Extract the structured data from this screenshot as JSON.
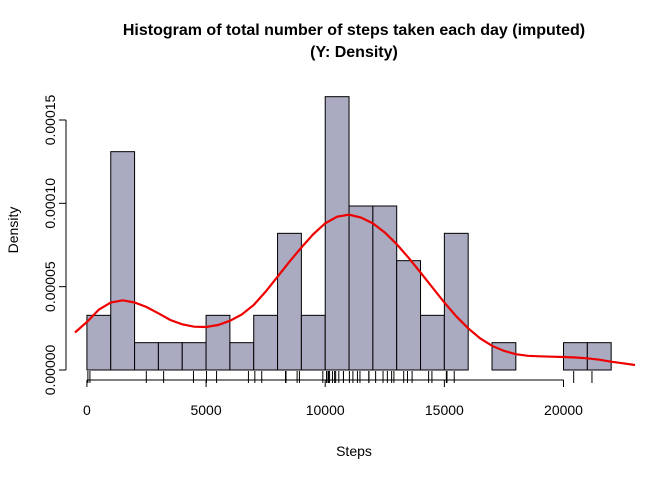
{
  "chart_data": {
    "type": "bar",
    "title": "Histogram of total number of steps taken each day (imputed)",
    "subtitle": "(Y: Density)",
    "xlabel": "Steps",
    "ylabel": "Density",
    "x_ticks": [
      0,
      5000,
      10000,
      15000,
      20000
    ],
    "x_tick_labels": [
      "0",
      "5000",
      "10000",
      "15000",
      "20000"
    ],
    "y_ticks": [
      0,
      5e-05,
      0.0001,
      0.00015
    ],
    "y_tick_labels": [
      "0.00000",
      "0.00005",
      "0.00010",
      "0.00015"
    ],
    "xlim": [
      -500,
      23000
    ],
    "ylim": [
      0,
      0.000168
    ],
    "bin_width": 1000,
    "bin_starts": [
      0,
      1000,
      2000,
      3000,
      4000,
      5000,
      6000,
      7000,
      8000,
      9000,
      10000,
      11000,
      12000,
      13000,
      14000,
      15000,
      16000,
      17000,
      18000,
      19000,
      20000,
      21000
    ],
    "values": [
      3.28e-05,
      0.000131,
      1.64e-05,
      1.64e-05,
      1.64e-05,
      3.28e-05,
      1.64e-05,
      3.28e-05,
      8.2e-05,
      3.28e-05,
      0.000164,
      9.84e-05,
      9.84e-05,
      6.56e-05,
      3.28e-05,
      8.2e-05,
      0,
      1.64e-05,
      0,
      0,
      1.64e-05,
      1.64e-05
    ],
    "bar_color": "#aaaac0",
    "density_curve": {
      "color": "#ee0000",
      "x": [
        -500,
        0,
        500,
        1000,
        1500,
        2000,
        2500,
        3000,
        3500,
        4000,
        4500,
        5000,
        5500,
        6000,
        6500,
        7000,
        7500,
        8000,
        8500,
        9000,
        9500,
        10000,
        10500,
        11000,
        11500,
        12000,
        12500,
        13000,
        13500,
        14000,
        14500,
        15000,
        15500,
        16000,
        16500,
        17000,
        17500,
        18000,
        18500,
        19000,
        19500,
        20000,
        20500,
        21000,
        21500,
        22000,
        22500,
        23000
      ],
      "y": [
        2.25e-05,
        2.88e-05,
        3.62e-05,
        4.05e-05,
        4.18e-05,
        4.05e-05,
        3.78e-05,
        3.4e-05,
        3e-05,
        2.74e-05,
        2.6e-05,
        2.58e-05,
        2.7e-05,
        2.95e-05,
        3.33e-05,
        3.9e-05,
        4.7e-05,
        5.6e-05,
        6.5e-05,
        7.35e-05,
        8.15e-05,
        8.8e-05,
        9.2e-05,
        9.32e-05,
        9.15e-05,
        8.8e-05,
        8.25e-05,
        7.55e-05,
        6.73e-05,
        5.85e-05,
        4.95e-05,
        4.05e-05,
        3.22e-05,
        2.5e-05,
        1.9e-05,
        1.45e-05,
        1.15e-05,
        9.5e-06,
        8.5e-06,
        8.2e-06,
        8e-06,
        7.8e-06,
        7.5e-06,
        7e-06,
        6.2e-06,
        5e-06,
        4e-06,
        3e-06
      ]
    },
    "rug": [
      41,
      126,
      2492,
      3219,
      4472,
      5018,
      5441,
      6778,
      7047,
      7336,
      8334,
      8355,
      8821,
      8918,
      9900,
      10056,
      10119,
      10139,
      10183,
      10304,
      10395,
      10439,
      10571,
      10765,
      10766,
      11015,
      11162,
      11352,
      11458,
      11829,
      11834,
      12116,
      12426,
      12608,
      12787,
      12883,
      13294,
      13452,
      13646,
      14339,
      14478,
      15084,
      15098,
      15110,
      15414,
      20427,
      21194
    ],
    "grid": false,
    "legend": "none"
  }
}
